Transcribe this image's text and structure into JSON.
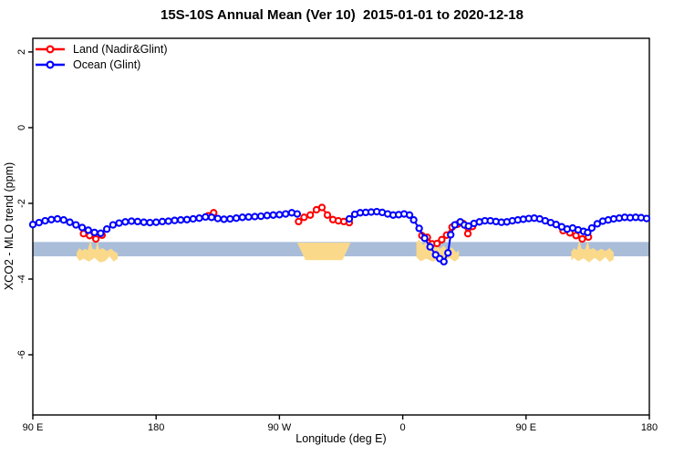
{
  "chart_data": {
    "type": "line",
    "title": "15S-10S Annual Mean (Ver 10)  2015-01-01 to 2020-12-18",
    "xlabel": "Longitude (deg E)",
    "ylabel": "XCO2 - MLO trend (ppm)",
    "x_domain": [
      90,
      540
    ],
    "y_domain": [
      -7.59,
      2.36
    ],
    "x_ticks": [
      {
        "lon": 90,
        "label": "90 E"
      },
      {
        "lon": 180,
        "label": "180"
      },
      {
        "lon": 270,
        "label": "90 W"
      },
      {
        "lon": 360,
        "label": "0"
      },
      {
        "lon": 450,
        "label": "90 E"
      },
      {
        "lon": 540,
        "label": "180"
      }
    ],
    "y_ticks": [
      {
        "value": 2,
        "label": "2"
      },
      {
        "value": 0,
        "label": "0"
      },
      {
        "value": -2,
        "label": "-2"
      },
      {
        "value": -4,
        "label": "-4"
      },
      {
        "value": -6,
        "label": "-6"
      }
    ],
    "band": {
      "top": -3.02,
      "bottom": -3.4,
      "color": "#a9bdd9"
    },
    "land_patches": {
      "color": "#fbd98a",
      "polygons": [
        [
          [
            122,
            -3.3
          ],
          [
            124,
            -3.18
          ],
          [
            126,
            -3.25
          ],
          [
            128,
            -3.2
          ],
          [
            130,
            -3.24
          ],
          [
            132,
            -2.97
          ],
          [
            133.5,
            -3.2
          ],
          [
            136,
            -3.22
          ],
          [
            137,
            -2.98
          ],
          [
            138.5,
            -3.22
          ],
          [
            141,
            -3.18
          ],
          [
            144,
            -3.26
          ],
          [
            147,
            -3.2
          ],
          [
            150,
            -3.28
          ],
          [
            152,
            -3.32
          ],
          [
            152,
            -3.46
          ],
          [
            149,
            -3.54
          ],
          [
            146,
            -3.4
          ],
          [
            143,
            -3.52
          ],
          [
            139,
            -3.56
          ],
          [
            135,
            -3.44
          ],
          [
            131,
            -3.54
          ],
          [
            127,
            -3.46
          ],
          [
            124,
            -3.52
          ],
          [
            122,
            -3.42
          ]
        ],
        [
          [
            283,
            -3.04
          ],
          [
            322,
            -3.04
          ],
          [
            316,
            -3.5
          ],
          [
            289,
            -3.5
          ]
        ],
        [
          [
            370,
            -3.03
          ],
          [
            372,
            -2.96
          ],
          [
            375,
            -3.1
          ],
          [
            378,
            -3.0
          ],
          [
            381,
            -3.14
          ],
          [
            384,
            -3.06
          ],
          [
            387,
            -3.2
          ],
          [
            390,
            -3.12
          ],
          [
            393,
            -3.26
          ],
          [
            396,
            -3.16
          ],
          [
            399,
            -3.3
          ],
          [
            401,
            -3.24
          ],
          [
            401,
            -3.45
          ],
          [
            398,
            -3.54
          ],
          [
            394,
            -3.44
          ],
          [
            390,
            -3.55
          ],
          [
            386,
            -3.46
          ],
          [
            382,
            -3.54
          ],
          [
            377,
            -3.46
          ],
          [
            373,
            -3.53
          ],
          [
            370,
            -3.42
          ]
        ],
        [
          [
            483,
            -3.28
          ],
          [
            485,
            -3.18
          ],
          [
            487,
            -3.24
          ],
          [
            489,
            -2.98
          ],
          [
            490.5,
            -3.2
          ],
          [
            493,
            -3.22
          ],
          [
            495,
            -2.99
          ],
          [
            496.5,
            -3.22
          ],
          [
            499,
            -3.18
          ],
          [
            502,
            -3.26
          ],
          [
            505,
            -3.2
          ],
          [
            508,
            -3.26
          ],
          [
            511,
            -3.18
          ],
          [
            514,
            -3.3
          ],
          [
            514,
            -3.48
          ],
          [
            511,
            -3.55
          ],
          [
            508,
            -3.42
          ],
          [
            504,
            -3.54
          ],
          [
            500,
            -3.44
          ],
          [
            496,
            -3.56
          ],
          [
            492,
            -3.45
          ],
          [
            488,
            -3.53
          ],
          [
            485,
            -3.44
          ],
          [
            483,
            -3.5
          ]
        ]
      ]
    },
    "series": [
      {
        "id": "land",
        "name": "Land (Nadir&Glint)",
        "color": "#ff0000",
        "marker": "open-circle",
        "segments": [
          [
            [
              127,
              -2.8
            ],
            [
              131.5,
              -2.85
            ],
            [
              136,
              -2.94
            ],
            [
              140.5,
              -2.84
            ]
          ],
          [
            [
              218,
              -2.33
            ],
            [
              222,
              -2.25
            ]
          ],
          [
            [
              284,
              -2.48
            ],
            [
              288,
              -2.37
            ],
            [
              292.5,
              -2.31
            ],
            [
              297,
              -2.17
            ],
            [
              301,
              -2.11
            ],
            [
              305,
              -2.31
            ],
            [
              309,
              -2.43
            ],
            [
              313,
              -2.46
            ],
            [
              317,
              -2.48
            ],
            [
              321,
              -2.51
            ]
          ],
          [
            [
              374,
              -2.85
            ],
            [
              378,
              -2.9
            ],
            [
              381.5,
              -3.07
            ],
            [
              385,
              -3.06
            ],
            [
              388.5,
              -2.96
            ],
            [
              392,
              -2.84
            ],
            [
              396,
              -2.63
            ],
            [
              400,
              -2.55
            ],
            [
              404,
              -2.53
            ],
            [
              407.5,
              -2.8
            ],
            [
              411,
              -2.61
            ]
          ],
          [
            [
              477,
              -2.72
            ],
            [
              482,
              -2.78
            ],
            [
              486.5,
              -2.85
            ],
            [
              491,
              -2.94
            ],
            [
              495.5,
              -2.89
            ]
          ]
        ]
      },
      {
        "id": "ocean",
        "name": "Ocean (Glint)",
        "color": "#0000ff",
        "marker": "open-circle",
        "segments": [
          [
            [
              90,
              -2.56
            ],
            [
              94.5,
              -2.51
            ],
            [
              99,
              -2.46
            ],
            [
              103.5,
              -2.43
            ],
            [
              108,
              -2.41
            ],
            [
              112.5,
              -2.44
            ],
            [
              117,
              -2.5
            ],
            [
              121.5,
              -2.57
            ],
            [
              126,
              -2.64
            ],
            [
              130.5,
              -2.71
            ],
            [
              135,
              -2.77
            ],
            [
              139.5,
              -2.79
            ],
            [
              144,
              -2.68
            ],
            [
              148.5,
              -2.57
            ],
            [
              153,
              -2.52
            ],
            [
              157.5,
              -2.49
            ],
            [
              162,
              -2.47
            ],
            [
              166.5,
              -2.48
            ],
            [
              171,
              -2.5
            ],
            [
              175.5,
              -2.51
            ],
            [
              180,
              -2.5
            ],
            [
              184.5,
              -2.48
            ],
            [
              189,
              -2.47
            ],
            [
              193.5,
              -2.45
            ],
            [
              198,
              -2.44
            ],
            [
              202.5,
              -2.43
            ],
            [
              207,
              -2.41
            ],
            [
              211.5,
              -2.39
            ],
            [
              216,
              -2.36
            ],
            [
              220.5,
              -2.37
            ],
            [
              225,
              -2.4
            ],
            [
              229.5,
              -2.42
            ],
            [
              234,
              -2.41
            ],
            [
              238.5,
              -2.39
            ],
            [
              243,
              -2.37
            ],
            [
              247.5,
              -2.36
            ],
            [
              252,
              -2.35
            ],
            [
              256.5,
              -2.34
            ],
            [
              261,
              -2.32
            ],
            [
              265.5,
              -2.31
            ],
            [
              270,
              -2.3
            ],
            [
              274.5,
              -2.28
            ],
            [
              279,
              -2.25
            ],
            [
              283,
              -2.28
            ]
          ],
          [
            [
              321,
              -2.41
            ],
            [
              325,
              -2.29
            ],
            [
              329,
              -2.25
            ],
            [
              333,
              -2.24
            ],
            [
              337,
              -2.23
            ],
            [
              341,
              -2.22
            ],
            [
              345,
              -2.24
            ],
            [
              349,
              -2.28
            ],
            [
              353,
              -2.31
            ],
            [
              357,
              -2.3
            ],
            [
              361,
              -2.28
            ],
            [
              365,
              -2.31
            ],
            [
              368,
              -2.44
            ],
            [
              372,
              -2.66
            ],
            [
              376,
              -2.92
            ],
            [
              380,
              -3.15
            ],
            [
              384,
              -3.36
            ],
            [
              387,
              -3.46
            ],
            [
              390,
              -3.54
            ],
            [
              393,
              -3.31
            ],
            [
              395,
              -2.83
            ],
            [
              398,
              -2.57
            ],
            [
              402,
              -2.49
            ],
            [
              405,
              -2.57
            ],
            [
              408,
              -2.6
            ],
            [
              412,
              -2.53
            ],
            [
              416,
              -2.49
            ],
            [
              420,
              -2.46
            ],
            [
              424,
              -2.46
            ],
            [
              428,
              -2.48
            ],
            [
              432,
              -2.5
            ],
            [
              436,
              -2.49
            ],
            [
              440,
              -2.46
            ],
            [
              444,
              -2.44
            ],
            [
              448,
              -2.42
            ],
            [
              452,
              -2.4
            ],
            [
              456,
              -2.39
            ],
            [
              460,
              -2.41
            ],
            [
              464,
              -2.46
            ],
            [
              468,
              -2.51
            ],
            [
              472,
              -2.56
            ],
            [
              476,
              -2.62
            ],
            [
              480,
              -2.68
            ],
            [
              484,
              -2.65
            ],
            [
              488,
              -2.7
            ],
            [
              492,
              -2.74
            ],
            [
              495,
              -2.77
            ],
            [
              498,
              -2.65
            ],
            [
              502,
              -2.54
            ],
            [
              506,
              -2.47
            ],
            [
              510,
              -2.44
            ],
            [
              514,
              -2.41
            ],
            [
              518,
              -2.39
            ],
            [
              522,
              -2.37
            ],
            [
              526,
              -2.38
            ],
            [
              530,
              -2.37
            ],
            [
              534,
              -2.38
            ],
            [
              538,
              -2.4
            ]
          ]
        ]
      }
    ]
  }
}
